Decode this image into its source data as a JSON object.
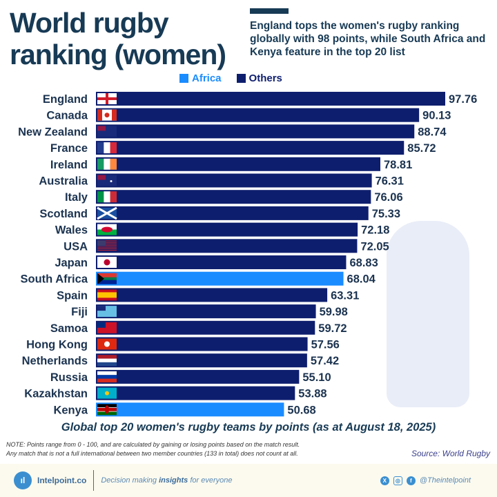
{
  "header": {
    "title_line1": "World rugby",
    "title_line2": "ranking (women)",
    "subtitle": "England tops the women's rugby ranking globally with 98 points, while South Africa and Kenya feature in the top 20 list"
  },
  "colors": {
    "Africa": "#1a8cff",
    "Others": "#0e1e6e",
    "text": "#1b3350"
  },
  "chart_data": {
    "type": "bar",
    "orientation": "horizontal",
    "title": "Global top 20 women's rugby teams by points (as at August 18, 2025)",
    "legend": [
      {
        "name": "Africa",
        "color": "#1a8cff"
      },
      {
        "name": "Others",
        "color": "#0e1e6e"
      }
    ],
    "legend_placement": "top",
    "categories": [
      "England",
      "Canada",
      "New Zealand",
      "France",
      "Ireland",
      "Australia",
      "Italy",
      "Scotland",
      "Wales",
      "USA",
      "Japan",
      "South Africa",
      "Spain",
      "Fiji",
      "Samoa",
      "Hong Kong",
      "Netherlands",
      "Russia",
      "Kazakhstan",
      "Kenya"
    ],
    "values": [
      97.76,
      90.13,
      88.74,
      85.72,
      78.81,
      76.31,
      76.06,
      75.33,
      72.18,
      72.05,
      68.83,
      68.04,
      63.31,
      59.98,
      59.72,
      57.56,
      57.42,
      55.1,
      53.88,
      50.68
    ],
    "labels": [
      "97.76",
      "90.13",
      "88.74",
      "85.72",
      "78.81",
      "76.31",
      "76.06",
      "75.33",
      "72.18",
      "72.05",
      "68.83",
      "68.04",
      "63.31",
      "59.98",
      "59.72",
      "57.56",
      "57.42",
      "55.10",
      "53.88",
      "50.68"
    ],
    "groups": [
      "Others",
      "Others",
      "Others",
      "Others",
      "Others",
      "Others",
      "Others",
      "Others",
      "Others",
      "Others",
      "Others",
      "Africa",
      "Others",
      "Others",
      "Others",
      "Others",
      "Others",
      "Others",
      "Others",
      "Africa"
    ],
    "flag_icons": [
      "england-flag",
      "canada-flag",
      "new-zealand-flag",
      "france-flag",
      "ireland-flag",
      "australia-flag",
      "italy-flag",
      "scotland-flag",
      "wales-flag",
      "usa-flag",
      "japan-flag",
      "south-africa-flag",
      "spain-flag",
      "fiji-flag",
      "samoa-flag",
      "hong-kong-flag",
      "netherlands-flag",
      "russia-flag",
      "kazakhstan-flag",
      "kenya-flag"
    ],
    "grid": false
  },
  "notes": {
    "line1": "NOTE: Points range from 0 - 100, and are calculated by gaining or losing points based on the match result.",
    "line2": "Any match that is not a full international between two member countries (133 in total) does not count at all.",
    "source": "Source: World Rugby"
  },
  "footer": {
    "brand": "Intelpoint.co",
    "tag_pre": "Decision making ",
    "tag_bold": "insights",
    "tag_post": " for everyone",
    "handle": "@Theintelpoint"
  }
}
